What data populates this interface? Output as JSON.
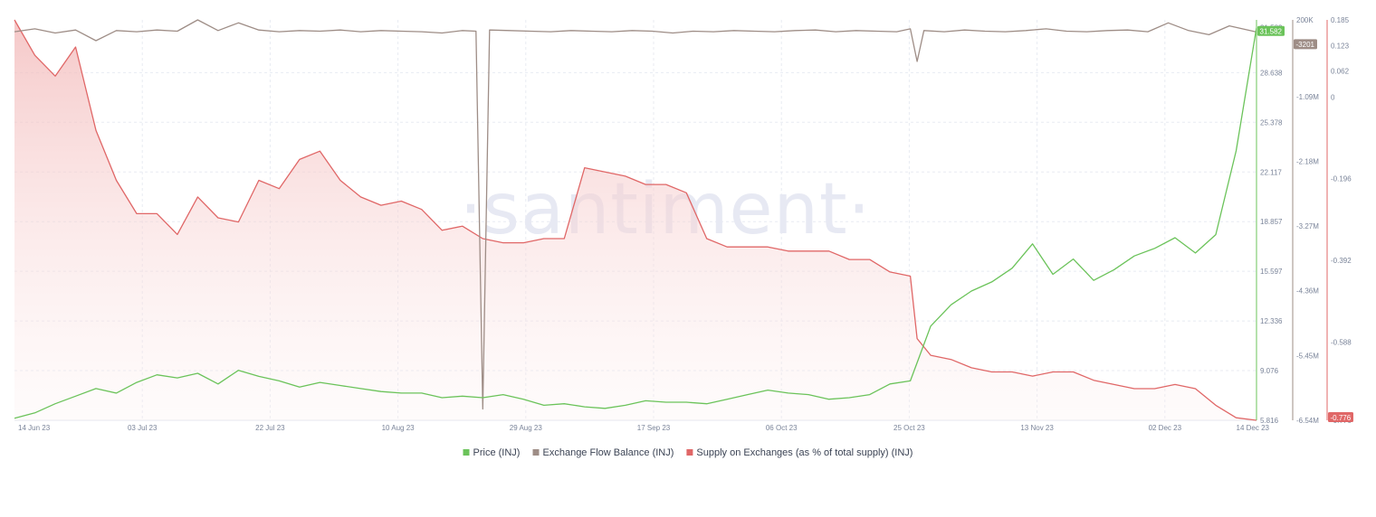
{
  "watermark": "·santiment·",
  "legend": [
    {
      "label": "Price (INJ)",
      "color": "#6bc35a"
    },
    {
      "label": "Exchange Flow Balance (INJ)",
      "color": "#9e8d86"
    },
    {
      "label": "Supply on Exchanges (as % of total supply) (INJ)",
      "color": "#e06767"
    }
  ],
  "chart_data": {
    "type": "line",
    "x_labels": [
      "14 Jun 23",
      "03 Jul 23",
      "22 Jul 23",
      "10 Aug 23",
      "29 Aug 23",
      "17 Sep 23",
      "06 Oct 23",
      "25 Oct 23",
      "13 Nov 23",
      "02 Dec 23",
      "14 Dec 23"
    ],
    "x_range": [
      "2023-06-14",
      "2023-12-14"
    ],
    "grid": true,
    "legend_position": "bottom",
    "axes": {
      "price": {
        "ticks": [
          "31.582",
          "28.638",
          "25.378",
          "22.117",
          "18.857",
          "15.597",
          "12.336",
          "9.076",
          "5.816"
        ],
        "range": [
          5.816,
          32.1
        ],
        "badge": "31.582",
        "color": "#6bc35a"
      },
      "flow": {
        "ticks": [
          "200K",
          "-1.09M",
          "-2.18M",
          "-3.27M",
          "-4.36M",
          "-5.45M",
          "-6.54M"
        ],
        "range": [
          -6.54,
          0.2
        ],
        "unit": "M",
        "badge": "-3201",
        "color": "#9e8d86"
      },
      "supply": {
        "ticks": [
          "0.185",
          "0.123",
          "0.062",
          "0",
          "-0.196",
          "-0.392",
          "-0.588",
          "-0.776"
        ],
        "range": [
          -0.776,
          0.185
        ],
        "badge": "-0.776",
        "color": "#e06767"
      }
    },
    "series": [
      {
        "name": "Price (INJ)",
        "axis": "price",
        "color": "#6bc35a",
        "x": [
          "2023-06-14",
          "2023-06-17",
          "2023-06-20",
          "2023-06-23",
          "2023-06-26",
          "2023-06-29",
          "2023-07-02",
          "2023-07-05",
          "2023-07-08",
          "2023-07-11",
          "2023-07-14",
          "2023-07-17",
          "2023-07-20",
          "2023-07-23",
          "2023-07-26",
          "2023-07-29",
          "2023-08-01",
          "2023-08-04",
          "2023-08-07",
          "2023-08-10",
          "2023-08-13",
          "2023-08-16",
          "2023-08-19",
          "2023-08-22",
          "2023-08-25",
          "2023-08-28",
          "2023-08-31",
          "2023-09-03",
          "2023-09-06",
          "2023-09-09",
          "2023-09-12",
          "2023-09-15",
          "2023-09-18",
          "2023-09-21",
          "2023-09-24",
          "2023-09-27",
          "2023-09-30",
          "2023-10-03",
          "2023-10-06",
          "2023-10-09",
          "2023-10-12",
          "2023-10-15",
          "2023-10-18",
          "2023-10-21",
          "2023-10-24",
          "2023-10-27",
          "2023-10-30",
          "2023-11-02",
          "2023-11-05",
          "2023-11-08",
          "2023-11-11",
          "2023-11-14",
          "2023-11-17",
          "2023-11-20",
          "2023-11-23",
          "2023-11-26",
          "2023-11-29",
          "2023-12-02",
          "2023-12-05",
          "2023-12-08",
          "2023-12-11",
          "2023-12-14"
        ],
        "values": [
          5.95,
          6.3,
          6.9,
          7.4,
          7.9,
          7.6,
          8.3,
          8.8,
          8.6,
          8.9,
          8.2,
          9.1,
          8.7,
          8.4,
          8.0,
          8.3,
          8.1,
          7.9,
          7.7,
          7.6,
          7.6,
          7.3,
          7.4,
          7.3,
          7.5,
          7.2,
          6.8,
          6.9,
          6.7,
          6.6,
          6.8,
          7.1,
          7.0,
          7.0,
          6.9,
          7.2,
          7.5,
          7.8,
          7.6,
          7.5,
          7.2,
          7.3,
          7.5,
          8.2,
          8.4,
          12.0,
          13.4,
          14.3,
          14.9,
          15.8,
          17.4,
          15.4,
          16.4,
          15.0,
          15.7,
          16.6,
          17.1,
          17.8,
          16.8,
          18.0,
          23.5,
          31.582
        ]
      },
      {
        "name": "Exchange Flow Balance (INJ)",
        "axis": "flow",
        "color": "#9e8d86",
        "x": [
          "2023-06-14",
          "2023-06-17",
          "2023-06-20",
          "2023-06-23",
          "2023-06-26",
          "2023-06-29",
          "2023-07-02",
          "2023-07-05",
          "2023-07-08",
          "2023-07-11",
          "2023-07-14",
          "2023-07-17",
          "2023-07-20",
          "2023-07-23",
          "2023-07-26",
          "2023-07-29",
          "2023-08-01",
          "2023-08-04",
          "2023-08-07",
          "2023-08-10",
          "2023-08-13",
          "2023-08-16",
          "2023-08-19",
          "2023-08-21",
          "2023-08-22",
          "2023-08-23",
          "2023-08-26",
          "2023-08-29",
          "2023-09-01",
          "2023-09-04",
          "2023-09-07",
          "2023-09-10",
          "2023-09-13",
          "2023-09-16",
          "2023-09-19",
          "2023-09-22",
          "2023-09-25",
          "2023-09-28",
          "2023-10-01",
          "2023-10-04",
          "2023-10-07",
          "2023-10-10",
          "2023-10-13",
          "2023-10-16",
          "2023-10-19",
          "2023-10-22",
          "2023-10-24",
          "2023-10-25",
          "2023-10-26",
          "2023-10-29",
          "2023-11-01",
          "2023-11-04",
          "2023-11-07",
          "2023-11-10",
          "2023-11-13",
          "2023-11-16",
          "2023-11-19",
          "2023-11-22",
          "2023-11-25",
          "2023-11-28",
          "2023-12-01",
          "2023-12-04",
          "2023-12-07",
          "2023-12-10",
          "2023-12-14"
        ],
        "values": [
          0.0,
          0.05,
          -0.02,
          0.03,
          -0.15,
          0.02,
          0.0,
          0.03,
          0.01,
          0.2,
          0.02,
          0.15,
          0.03,
          0.0,
          0.02,
          0.01,
          0.03,
          0.0,
          0.02,
          0.01,
          0.0,
          -0.02,
          0.02,
          0.01,
          -6.35,
          0.03,
          0.02,
          0.01,
          0.0,
          0.02,
          0.01,
          0.0,
          0.02,
          0.01,
          -0.02,
          0.01,
          0.0,
          0.02,
          0.01,
          0.0,
          0.02,
          0.03,
          0.0,
          0.02,
          0.01,
          0.0,
          0.05,
          -0.5,
          0.02,
          0.0,
          0.03,
          0.01,
          0.0,
          0.02,
          0.05,
          0.01,
          0.0,
          0.02,
          0.03,
          0.0,
          0.15,
          0.02,
          -0.05,
          0.1,
          -0.0032
        ]
      },
      {
        "name": "Supply on Exchanges (as % of total supply) (INJ)",
        "axis": "supply",
        "color": "#e06767",
        "x": [
          "2023-06-14",
          "2023-06-17",
          "2023-06-20",
          "2023-06-23",
          "2023-06-26",
          "2023-06-29",
          "2023-07-02",
          "2023-07-05",
          "2023-07-08",
          "2023-07-11",
          "2023-07-14",
          "2023-07-17",
          "2023-07-20",
          "2023-07-23",
          "2023-07-26",
          "2023-07-29",
          "2023-08-01",
          "2023-08-04",
          "2023-08-07",
          "2023-08-10",
          "2023-08-13",
          "2023-08-16",
          "2023-08-19",
          "2023-08-22",
          "2023-08-25",
          "2023-08-28",
          "2023-08-31",
          "2023-09-03",
          "2023-09-06",
          "2023-09-09",
          "2023-09-12",
          "2023-09-15",
          "2023-09-18",
          "2023-09-21",
          "2023-09-24",
          "2023-09-27",
          "2023-09-30",
          "2023-10-03",
          "2023-10-06",
          "2023-10-09",
          "2023-10-12",
          "2023-10-15",
          "2023-10-18",
          "2023-10-21",
          "2023-10-24",
          "2023-10-25",
          "2023-10-27",
          "2023-10-30",
          "2023-11-02",
          "2023-11-05",
          "2023-11-08",
          "2023-11-11",
          "2023-11-14",
          "2023-11-17",
          "2023-11-20",
          "2023-11-23",
          "2023-11-26",
          "2023-11-29",
          "2023-12-02",
          "2023-12-05",
          "2023-12-08",
          "2023-12-11",
          "2023-12-14"
        ],
        "values": [
          0.185,
          0.1,
          0.05,
          0.12,
          -0.08,
          -0.2,
          -0.28,
          -0.28,
          -0.33,
          -0.24,
          -0.29,
          -0.3,
          -0.2,
          -0.22,
          -0.15,
          -0.13,
          -0.2,
          -0.24,
          -0.26,
          -0.25,
          -0.27,
          -0.32,
          -0.31,
          -0.34,
          -0.35,
          -0.35,
          -0.34,
          -0.34,
          -0.17,
          -0.18,
          -0.19,
          -0.21,
          -0.21,
          -0.23,
          -0.34,
          -0.36,
          -0.36,
          -0.36,
          -0.37,
          -0.37,
          -0.37,
          -0.39,
          -0.39,
          -0.42,
          -0.43,
          -0.58,
          -0.62,
          -0.63,
          -0.65,
          -0.66,
          -0.66,
          -0.67,
          -0.66,
          -0.66,
          -0.68,
          -0.69,
          -0.7,
          -0.7,
          -0.69,
          -0.7,
          -0.74,
          -0.77,
          -0.776
        ]
      }
    ]
  }
}
